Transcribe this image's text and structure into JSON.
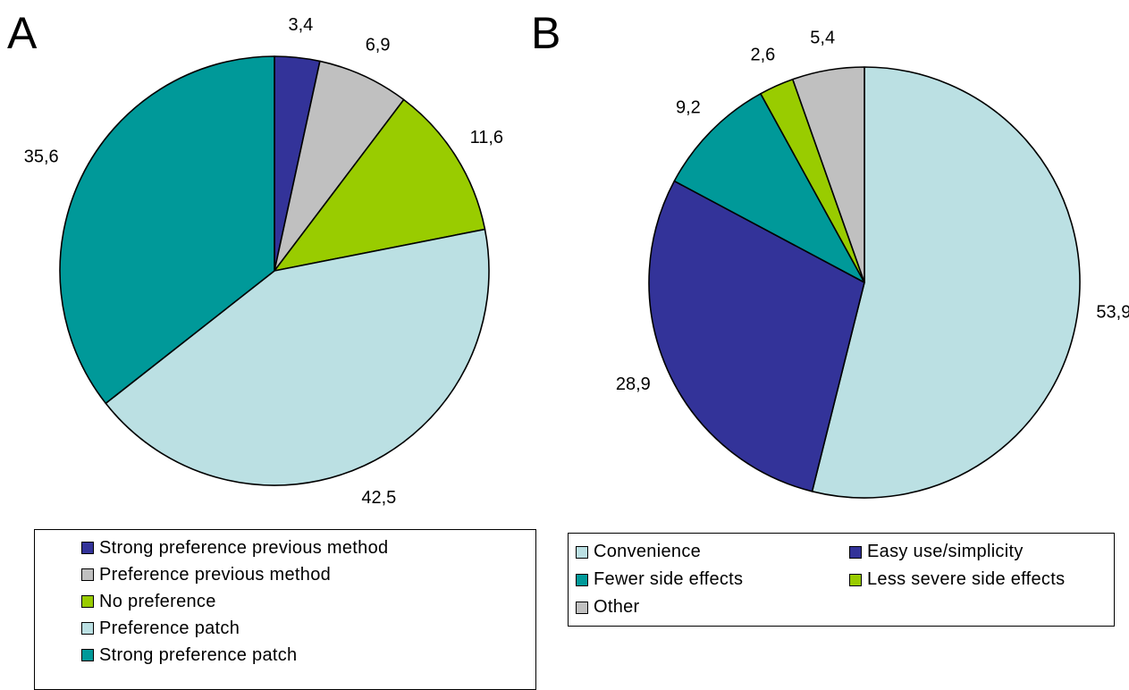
{
  "panel_a": {
    "letter": "A"
  },
  "panel_b": {
    "letter": "B"
  },
  "chart_data": [
    {
      "type": "pie",
      "panel": "A",
      "labels": [
        "Strong preference previous method",
        "Preference previous method",
        "No preference",
        "Preference patch",
        "Strong preference patch"
      ],
      "values": [
        3.4,
        6.9,
        11.6,
        42.5,
        35.6
      ],
      "value_labels": [
        "3,4",
        "6,9",
        "11,6",
        "42,5",
        "35,6"
      ],
      "colors": [
        "#333399",
        "#c0c0c0",
        "#99cc00",
        "#bbe0e3",
        "#009999"
      ],
      "legend_placement": "bottom",
      "start": "12 o'clock, clockwise"
    },
    {
      "type": "pie",
      "panel": "B",
      "labels": [
        "Convenience",
        "Easy use/simplicity",
        "Fewer side effects",
        "Less severe side effects",
        "Other"
      ],
      "values": [
        53.9,
        28.9,
        9.2,
        2.6,
        5.4
      ],
      "value_labels": [
        "53,9",
        "28,9",
        "9,2",
        "2,6",
        "5,4"
      ],
      "colors": [
        "#bbe0e3",
        "#333399",
        "#009999",
        "#99cc00",
        "#c0c0c0"
      ],
      "legend_placement": "bottom",
      "start": "12 o'clock, clockwise"
    }
  ]
}
